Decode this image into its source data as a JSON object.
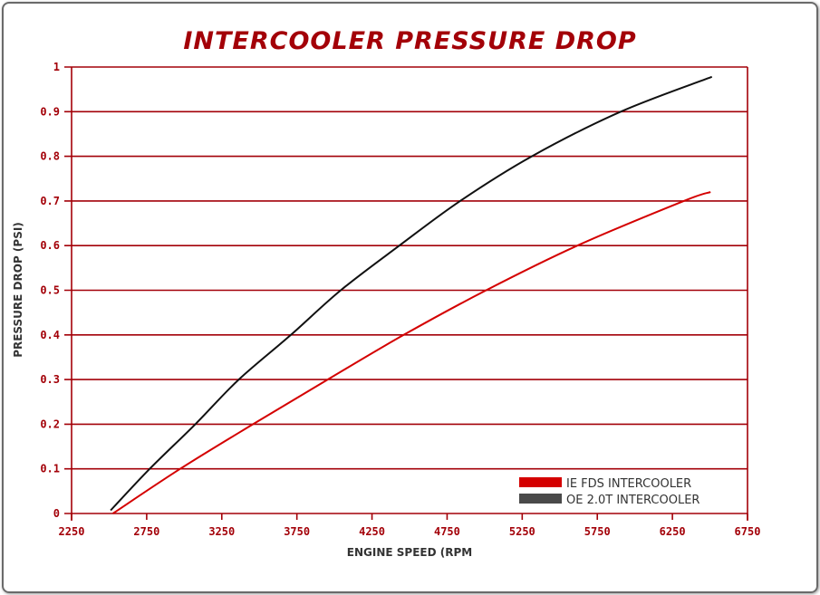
{
  "chart_data": {
    "type": "line",
    "title": "INTERCOOLER PRESSURE DROP",
    "xlabel": "ENGINE SPEED (RPM",
    "ylabel": "PRESSURE DROP (PSI)",
    "xlim": [
      2250,
      6750
    ],
    "ylim": [
      0,
      1
    ],
    "xticks": [
      "2250",
      "2750",
      "3250",
      "3750",
      "4250",
      "4750",
      "5250",
      "5750",
      "6250",
      "6750"
    ],
    "yticks": [
      "0",
      "0.1",
      "0.2",
      "0.3",
      "0.4",
      "0.5",
      "0.6",
      "0.7",
      "0.8",
      "0.9",
      "1"
    ],
    "grid": "horizontal",
    "legend_position": "bottom-right",
    "series": [
      {
        "name": "IE FDS INTERCOOLER",
        "color": "#d40000",
        "x": [
          2525,
          2973,
          3458,
          3955,
          4461,
          5010,
          5617,
          6326,
          6504
        ],
        "y": [
          0,
          0.1,
          0.2,
          0.3,
          0.4,
          0.5,
          0.6,
          0.7,
          0.72
        ]
      },
      {
        "name": "OE 2.0T INTERCOOLER",
        "color": "#111111",
        "legend_color": "#4a4a4a",
        "x": [
          2510,
          2770,
          3074,
          3363,
          3710,
          4042,
          4432,
          4837,
          5314,
          5906,
          6513
        ],
        "y": [
          0.007,
          0.1,
          0.2,
          0.3,
          0.4,
          0.5,
          0.6,
          0.7,
          0.8,
          0.9,
          0.978
        ]
      }
    ]
  }
}
